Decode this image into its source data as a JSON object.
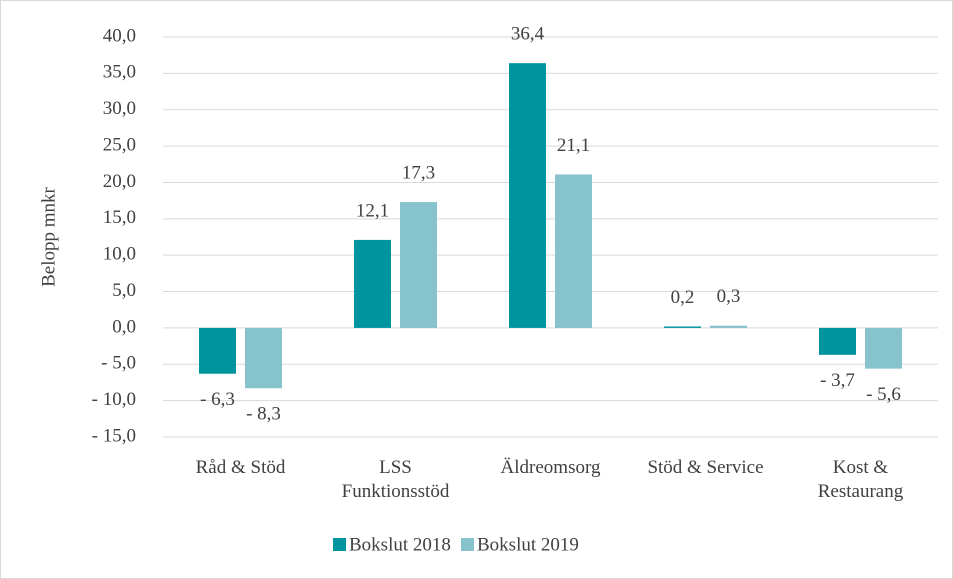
{
  "chart_data": {
    "type": "bar",
    "y_label": "Belopp mnkr",
    "categories": [
      "Råd & Stöd",
      "LSS\nFunktionsstöd",
      "Äldreomsorg",
      "Stöd & Service",
      "Kost &\nRestaurang"
    ],
    "series": [
      {
        "name": "Bokslut 2018",
        "color": "#00959e",
        "values": [
          -6.3,
          12.1,
          36.4,
          0.2,
          -3.7
        ],
        "value_labels": [
          "- 6,3",
          "12,1",
          "36,4",
          "0,2",
          "- 3,7"
        ]
      },
      {
        "name": "Bokslut 2019",
        "color": "#86c3cc",
        "values": [
          -8.3,
          17.3,
          21.1,
          0.3,
          -5.6
        ],
        "value_labels": [
          "- 8,3",
          "17,3",
          "21,1",
          "0,3",
          "- 5,6"
        ]
      }
    ],
    "ylim": [
      -15,
      40
    ],
    "yticks": [
      {
        "value": -15,
        "label": "- 15,0"
      },
      {
        "value": -10,
        "label": "- 10,0"
      },
      {
        "value": -5,
        "label": "- 5,0"
      },
      {
        "value": 0,
        "label": "0,0"
      },
      {
        "value": 5,
        "label": "5,0"
      },
      {
        "value": 10,
        "label": "10,0"
      },
      {
        "value": 15,
        "label": "15,0"
      },
      {
        "value": 20,
        "label": "20,0"
      },
      {
        "value": 25,
        "label": "25,0"
      },
      {
        "value": 30,
        "label": "30,0"
      },
      {
        "value": 35,
        "label": "35,0"
      },
      {
        "value": 40,
        "label": "40,0"
      }
    ],
    "grid": true,
    "legend": "bottom"
  }
}
